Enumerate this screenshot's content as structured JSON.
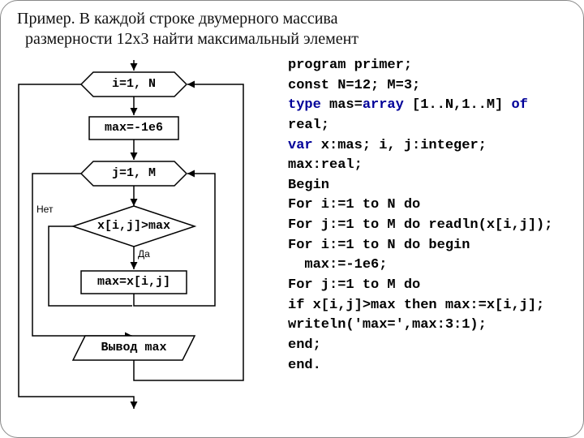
{
  "title_line1": "Пример. В каждой строке двумерного массива",
  "title_line2": "размерности 12x3 найти максимальный элемент",
  "flow": {
    "hex1": "i=1, N",
    "rect1": "max=-1e6",
    "hex2": "j=1, M",
    "diamond": "x[i,j]>max",
    "no_label": "Нет",
    "yes_label": "Да",
    "rect2": "max=x[i,j]",
    "para": "Вывод max"
  },
  "code_lines": [
    {
      "t": "program primer;",
      "kw": []
    },
    {
      "t": "const N=12; M=3;",
      "kw": []
    },
    {
      "t": "type mas=array [1..N,1..M] of",
      "kw": [
        "type",
        "array",
        "of"
      ]
    },
    {
      "t": "real;",
      "kw": []
    },
    {
      "t": "var x:mas; i, j:integer;",
      "kw": [
        "var"
      ]
    },
    {
      "t": "max:real;",
      "kw": []
    },
    {
      "t": "Begin",
      "kw": []
    },
    {
      "t": "For i:=1 to N do",
      "kw": []
    },
    {
      "t": "For j:=1 to M do readln(x[i,j]);",
      "kw": []
    },
    {
      "t": "For i:=1 to N do begin",
      "kw": []
    },
    {
      "t": "  max:=-1e6;",
      "kw": []
    },
    {
      "t": "For j:=1 to M do",
      "kw": []
    },
    {
      "t": "if x[i,j]>max then max:=x[i,j];",
      "kw": []
    },
    {
      "t": "writeln('max=',max:3:1);",
      "kw": []
    },
    {
      "t": "end;",
      "kw": []
    },
    {
      "t": "end.",
      "kw": []
    }
  ],
  "style": {
    "stroke": "#000000",
    "stroke_width": 1.5,
    "arrow_size": 6,
    "bg": "#ffffff"
  }
}
